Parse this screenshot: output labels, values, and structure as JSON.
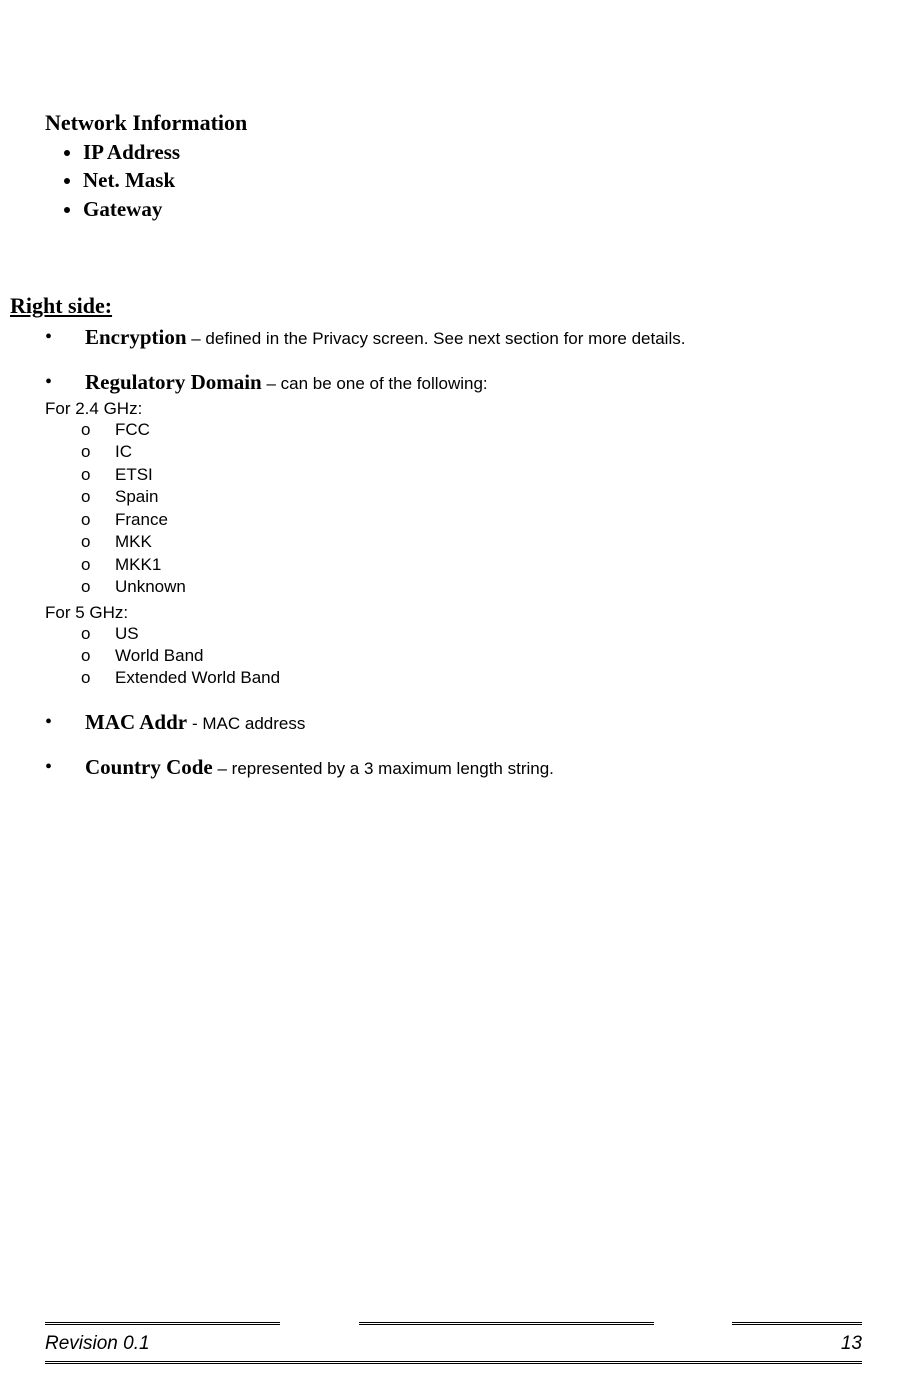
{
  "network_info": {
    "heading": "Network Information",
    "bullets": [
      "IP Address",
      "Net. Mask",
      "Gateway"
    ]
  },
  "right_side": {
    "heading": "Right side:",
    "items": [
      {
        "term": "Encryption",
        "sep": " – ",
        "desc": "defined in the Privacy screen. See next section for more details."
      },
      {
        "term": "Regulatory Domain",
        "sep": " – ",
        "desc": "can be one of the following:",
        "groups": [
          {
            "label": "For 2.4 GHz:",
            "options": [
              "FCC",
              "IC",
              "ETSI",
              "Spain",
              "France",
              "MKK",
              "MKK1",
              "Unknown"
            ]
          },
          {
            "label": "For 5 GHz:",
            "options": [
              "US",
              "World Band",
              "Extended World Band"
            ]
          }
        ]
      },
      {
        "term": "MAC Addr ",
        "sep": " - ",
        "desc": "MAC address"
      },
      {
        "term": "Country Code",
        "sep": " – ",
        "desc": "represented by a 3 maximum length string."
      }
    ]
  },
  "footer": {
    "revision": "Revision 0.1",
    "page": "13"
  }
}
